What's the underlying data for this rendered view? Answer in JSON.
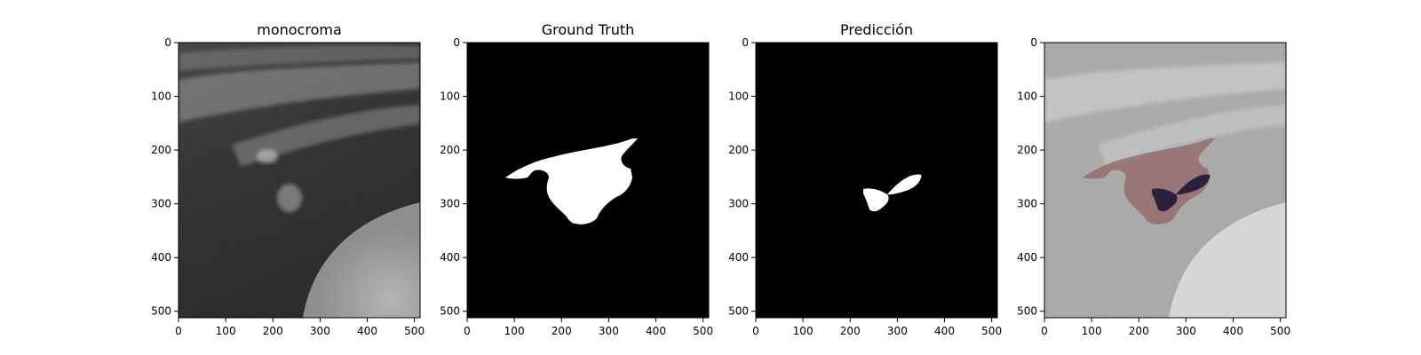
{
  "figure": {
    "panels": [
      {
        "title": "monocroma"
      },
      {
        "title": "Ground Truth"
      },
      {
        "title": "Predicción"
      },
      {
        "title": ""
      }
    ],
    "axis_ticks": [
      0,
      100,
      200,
      300,
      400,
      500
    ]
  }
}
